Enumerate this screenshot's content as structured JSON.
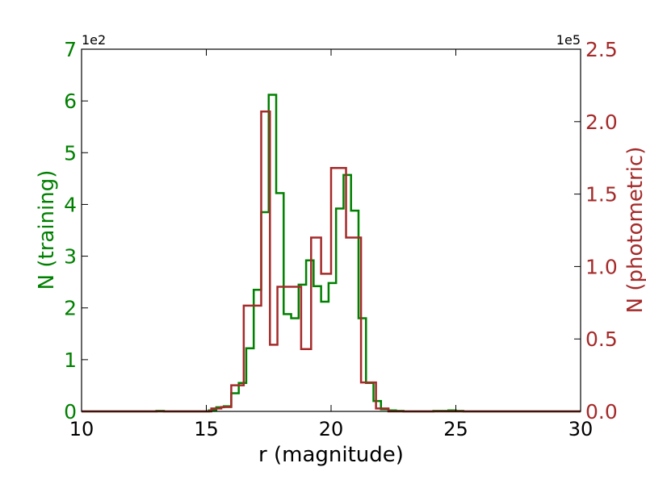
{
  "chart_data": {
    "type": "step",
    "title": "",
    "xlabel": "r (magnitude)",
    "ylabel_left": "N (training)",
    "ylabel_right": "N (photometric)",
    "xlim": [
      10,
      30
    ],
    "ylim_left": [
      0,
      7
    ],
    "ylim_right": [
      0,
      2.5
    ],
    "x_ticks": [
      "10",
      "15",
      "20",
      "25",
      "30"
    ],
    "y_ticks_left": [
      "0",
      "1",
      "2",
      "3",
      "4",
      "5",
      "6",
      "7"
    ],
    "y_ticks_right": [
      "0.0",
      "0.5",
      "1.0",
      "1.5",
      "2.0",
      "2.5"
    ],
    "left_multiplier": "1e2",
    "right_multiplier": "1e5",
    "grid": false,
    "colors": {
      "training": "#008000",
      "photometric": "#a52a2a"
    },
    "series": [
      {
        "axis": "left",
        "bin_edges": [
          10.0,
          10.3,
          10.6,
          10.9,
          11.2,
          11.5,
          11.8,
          12.1,
          12.4,
          12.7,
          13.0,
          13.3,
          13.6,
          13.9,
          14.2,
          14.5,
          14.8,
          15.1,
          15.4,
          15.7,
          16.0,
          16.3,
          16.6,
          16.9,
          17.2,
          17.5,
          17.8,
          18.1,
          18.4,
          18.7,
          19.0,
          19.3,
          19.6,
          19.9,
          20.2,
          20.5,
          20.8,
          21.1,
          21.4,
          21.7,
          22.0,
          22.3,
          22.6,
          22.9,
          23.2,
          23.5,
          23.8,
          24.1,
          24.4,
          24.7,
          25.0,
          25.3,
          25.6,
          25.9,
          26.2,
          26.5,
          26.8,
          27.1,
          27.4,
          27.7,
          28.0,
          28.3,
          28.6,
          28.9,
          29.2,
          29.5,
          30.0
        ],
        "values": [
          0,
          0,
          0,
          0,
          0,
          0,
          0,
          0,
          0,
          0,
          0.01,
          0,
          0,
          0,
          0,
          0,
          0,
          0.02,
          0.08,
          0.1,
          0.35,
          0.55,
          1.22,
          2.35,
          3.85,
          6.12,
          4.22,
          1.88,
          1.8,
          2.45,
          2.92,
          2.42,
          2.12,
          2.48,
          3.92,
          4.57,
          3.88,
          1.8,
          0.55,
          0.2,
          0.04,
          0.02,
          0.01,
          0,
          0,
          0,
          0,
          0.01,
          0.01,
          0.02,
          0.01,
          0,
          0,
          0,
          0,
          0,
          0,
          0,
          0,
          0,
          0,
          0,
          0,
          0,
          0,
          0
        ]
      },
      {
        "axis": "right",
        "bin_edges": [
          10.0,
          15.2,
          15.6,
          16.0,
          16.2,
          16.5,
          16.8,
          17.2,
          17.55,
          17.85,
          18.4,
          18.8,
          19.2,
          19.6,
          20.0,
          20.6,
          21.2,
          21.4,
          21.8,
          22.3,
          30.0
        ],
        "values": [
          0,
          0.02,
          0.03,
          0.18,
          0.18,
          0.73,
          0.73,
          2.07,
          0.46,
          0.86,
          0.86,
          0.43,
          1.2,
          0.95,
          1.68,
          1.2,
          0.2,
          0.2,
          0.02,
          0
        ]
      }
    ]
  }
}
